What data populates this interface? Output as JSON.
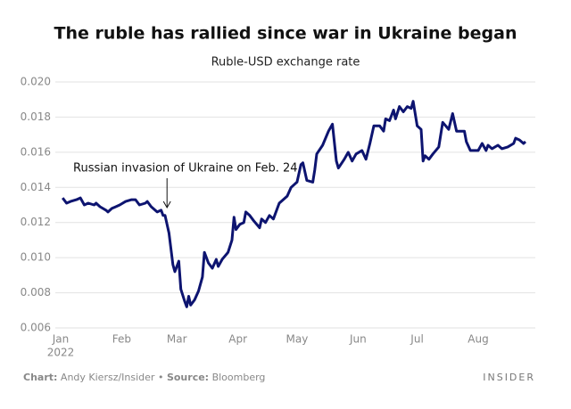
{
  "chart_data": {
    "type": "line",
    "title": "The ruble has rallied since war in Ukraine began",
    "subtitle": "Ruble-USD exchange rate",
    "x_year": "2022",
    "annotation": {
      "text": "Russian invasion of Ukraine on Feb. 24",
      "x": 54
    },
    "footer": {
      "chart_label": "Chart:",
      "chart_text": "Andy Kiersz/Insider",
      "sep": "•",
      "source_label": "Source:",
      "source_text": "Bloomberg"
    },
    "brand": "INSIDER",
    "xlim": [
      0,
      241
    ],
    "xticks": [
      {
        "value": 0,
        "label": "Jan"
      },
      {
        "value": 31,
        "label": "Feb"
      },
      {
        "value": 59,
        "label": "Mar"
      },
      {
        "value": 90,
        "label": "Apr"
      },
      {
        "value": 120,
        "label": "May"
      },
      {
        "value": 151,
        "label": "Jun"
      },
      {
        "value": 181,
        "label": "Jul"
      },
      {
        "value": 212,
        "label": "Aug"
      }
    ],
    "ylim": [
      0.006,
      0.02
    ],
    "yticks": [
      {
        "value": 0.006,
        "label": "0.006"
      },
      {
        "value": 0.008,
        "label": "0.008"
      },
      {
        "value": 0.01,
        "label": "0.010"
      },
      {
        "value": 0.012,
        "label": "0.012"
      },
      {
        "value": 0.014,
        "label": "0.014"
      },
      {
        "value": 0.016,
        "label": "0.016"
      },
      {
        "value": 0.018,
        "label": "0.018"
      },
      {
        "value": 0.02,
        "label": "0.020"
      }
    ],
    "grid": true,
    "color": "#0d1470",
    "x": [
      1,
      3,
      5,
      8,
      10,
      12,
      14,
      17,
      18,
      20,
      23,
      24,
      26,
      28,
      30,
      33,
      36,
      38,
      40,
      43,
      44,
      46,
      49,
      51,
      52,
      53,
      54,
      55,
      57,
      58,
      60,
      61,
      63,
      64,
      65,
      66,
      68,
      70,
      72,
      73,
      75,
      77,
      79,
      80,
      82,
      85,
      87,
      88,
      89,
      91,
      93,
      94,
      96,
      98,
      101,
      102,
      104,
      106,
      108,
      110,
      111,
      113,
      115,
      117,
      119,
      120,
      122,
      123,
      125,
      128,
      129,
      130,
      133,
      136,
      138,
      140,
      141,
      144,
      146,
      148,
      150,
      153,
      155,
      157,
      159,
      162,
      164,
      165,
      167,
      169,
      170,
      172,
      174,
      176,
      178,
      179,
      181,
      183,
      184,
      185,
      187,
      189,
      192,
      194,
      197,
      199,
      201,
      205,
      206,
      208,
      212,
      214,
      216,
      217,
      219,
      222,
      224,
      227,
      230,
      231,
      233,
      235,
      236
    ],
    "values": [
      0.0134,
      0.0131,
      0.0132,
      0.0133,
      0.0134,
      0.013,
      0.0131,
      0.013,
      0.0131,
      0.0129,
      0.0127,
      0.0126,
      0.0128,
      0.0129,
      0.013,
      0.0132,
      0.0133,
      0.0133,
      0.013,
      0.0131,
      0.0132,
      0.0129,
      0.0126,
      0.0127,
      0.0124,
      0.0124,
      0.0119,
      0.0114,
      0.0096,
      0.0092,
      0.0098,
      0.0082,
      0.0075,
      0.0072,
      0.0078,
      0.0073,
      0.0076,
      0.0081,
      0.0089,
      0.0103,
      0.0097,
      0.0094,
      0.0099,
      0.0095,
      0.0099,
      0.0103,
      0.011,
      0.0123,
      0.0116,
      0.0119,
      0.012,
      0.0126,
      0.0124,
      0.0121,
      0.0117,
      0.0122,
      0.012,
      0.0124,
      0.0122,
      0.0128,
      0.0131,
      0.0133,
      0.0135,
      0.014,
      0.0142,
      0.0143,
      0.0153,
      0.0154,
      0.0144,
      0.0143,
      0.015,
      0.0159,
      0.0164,
      0.0172,
      0.0176,
      0.0155,
      0.0151,
      0.0156,
      0.016,
      0.0155,
      0.0159,
      0.0161,
      0.0156,
      0.0165,
      0.0175,
      0.0175,
      0.0172,
      0.0179,
      0.0178,
      0.0184,
      0.0179,
      0.0186,
      0.0183,
      0.0186,
      0.0185,
      0.0189,
      0.0175,
      0.0173,
      0.0155,
      0.0158,
      0.0156,
      0.0159,
      0.0163,
      0.0177,
      0.0173,
      0.0182,
      0.0172,
      0.0172,
      0.0166,
      0.0161,
      0.0161,
      0.0165,
      0.0161,
      0.0164,
      0.0162,
      0.0164,
      0.0162,
      0.0163,
      0.0165,
      0.0168,
      0.0167,
      0.0165,
      0.0166
    ]
  }
}
